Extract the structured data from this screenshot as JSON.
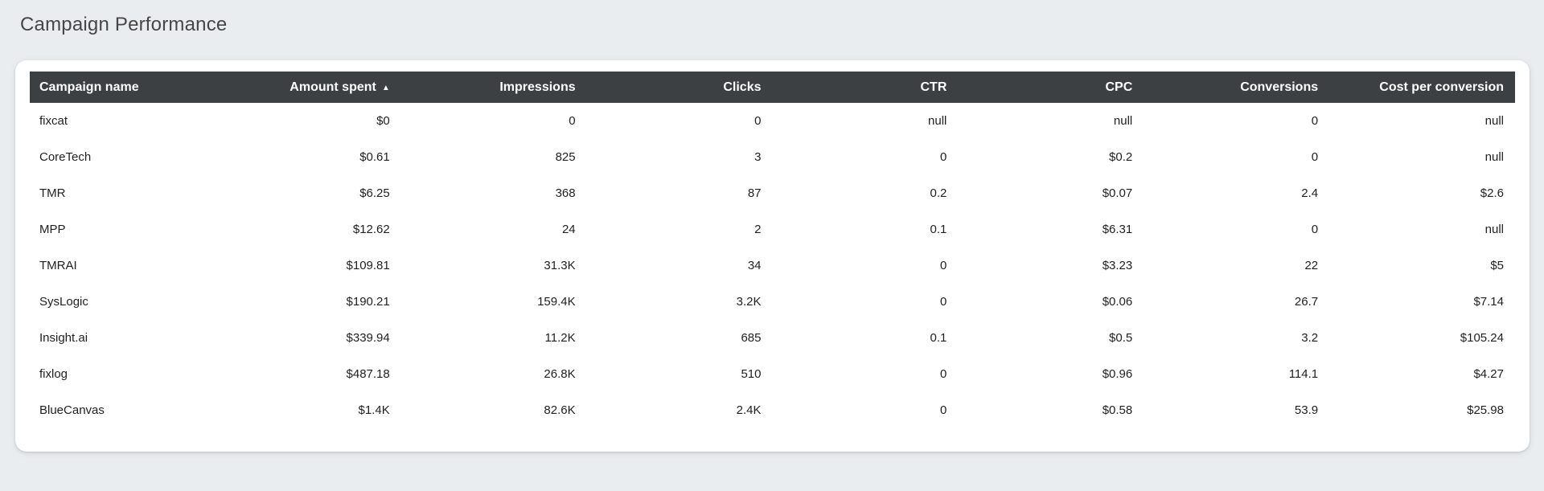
{
  "widget": {
    "title": "Campaign Performance"
  },
  "chart_data": {
    "type": "table",
    "title": "Campaign Performance",
    "columns": [
      "Campaign name",
      "Amount spent",
      "Impressions",
      "Clicks",
      "CTR",
      "CPC",
      "Conversions",
      "Cost per conversion"
    ],
    "column_alignments": [
      "left",
      "right",
      "right",
      "right",
      "right",
      "right",
      "right",
      "right"
    ],
    "sort": {
      "column": "Amount spent",
      "column_index": 1,
      "direction": "ascending",
      "icon": "▲"
    },
    "rows": [
      [
        "fixcat",
        "$0",
        "0",
        "0",
        "null",
        "null",
        "0",
        "null"
      ],
      [
        "CoreTech",
        "$0.61",
        "825",
        "3",
        "0",
        "$0.2",
        "0",
        "null"
      ],
      [
        "TMR",
        "$6.25",
        "368",
        "87",
        "0.2",
        "$0.07",
        "2.4",
        "$2.6"
      ],
      [
        "MPP",
        "$12.62",
        "24",
        "2",
        "0.1",
        "$6.31",
        "0",
        "null"
      ],
      [
        "TMRAI",
        "$109.81",
        "31.3K",
        "34",
        "0",
        "$3.23",
        "22",
        "$5"
      ],
      [
        "SysLogic",
        "$190.21",
        "159.4K",
        "3.2K",
        "0",
        "$0.06",
        "26.7",
        "$7.14"
      ],
      [
        "Insight.ai",
        "$339.94",
        "11.2K",
        "685",
        "0.1",
        "$0.5",
        "3.2",
        "$105.24"
      ],
      [
        "fixlog",
        "$487.18",
        "26.8K",
        "510",
        "0",
        "$0.96",
        "114.1",
        "$4.27"
      ],
      [
        "BlueCanvas",
        "$1.4K",
        "82.6K",
        "2.4K",
        "0",
        "$0.58",
        "53.9",
        "$25.98"
      ]
    ]
  },
  "colors": {
    "page_background": "#eaedf0",
    "card_background": "#ffffff",
    "header_background": "#3c4043",
    "header_text": "#ffffff",
    "body_text": "#1f1f1f",
    "title_text": "#464646"
  }
}
